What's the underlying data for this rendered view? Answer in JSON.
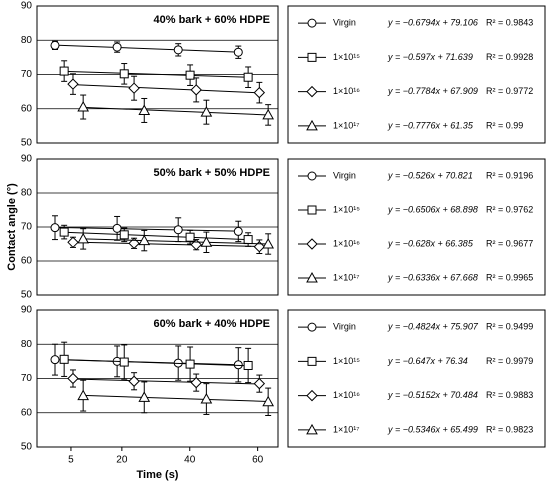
{
  "chart_data": [
    {
      "type": "scatter",
      "title": "40% bark + 60% HDPE",
      "xlim": [
        -5,
        66
      ],
      "ylim": [
        50,
        90
      ],
      "yticks": [
        50,
        60,
        70,
        80,
        90
      ],
      "grid": true,
      "series": [
        {
          "name": "Virgin",
          "marker": "circle",
          "color": "#000000",
          "equation": "y = −0.6794x + 79.106",
          "r2": "R² = 0.9843",
          "x": [
            0.3,
            18.6,
            36.6,
            54.3
          ],
          "values": [
            78.5,
            78,
            77.2,
            76.5
          ],
          "errors": [
            1.2,
            1.5,
            1.8,
            1.8
          ]
        },
        {
          "name": "1×10¹⁵",
          "marker": "square",
          "color": "#000000",
          "equation": "y = −0.597x + 71.639",
          "r2": "R² = 0.9928",
          "x": [
            3,
            20.7,
            40.1,
            57.2
          ],
          "values": [
            71,
            70.2,
            69.8,
            69.2
          ],
          "errors": [
            3,
            3,
            3,
            3
          ]
        },
        {
          "name": "1×10¹⁶",
          "marker": "diamond",
          "color": "#000000",
          "equation": "y = −0.7784x + 67.909",
          "r2": "R² = 0.9772",
          "x": [
            5.6,
            23.6,
            41.9,
            60.5
          ],
          "values": [
            67.2,
            66,
            65.5,
            64.7
          ],
          "errors": [
            3,
            3.5,
            3.5,
            3
          ]
        },
        {
          "name": "1×10¹⁷",
          "marker": "triangle",
          "color": "#000000",
          "equation": "y = −0.7776x + 61.35",
          "r2": "R² = 0.99",
          "x": [
            8.6,
            26.6,
            44.9,
            63.1
          ],
          "values": [
            60.5,
            59.5,
            59,
            58.2
          ],
          "errors": [
            3.5,
            3.5,
            3.5,
            3
          ]
        }
      ]
    },
    {
      "type": "scatter",
      "title": "50% bark + 50% HDPE",
      "ylabel": "Contact angle (°)",
      "xlim": [
        -5,
        66
      ],
      "ylim": [
        50,
        90
      ],
      "yticks": [
        50,
        60,
        70,
        80,
        90
      ],
      "grid": true,
      "series": [
        {
          "name": "Virgin",
          "marker": "circle",
          "color": "#000000",
          "equation": "y = −0.526x + 70.821",
          "r2": "R² = 0.9196",
          "x": [
            0.3,
            18.6,
            36.6,
            54.3
          ],
          "values": [
            69.8,
            69.6,
            69.2,
            68.7
          ],
          "errors": [
            3.5,
            3.5,
            3.5,
            3
          ]
        },
        {
          "name": "1×10¹⁵",
          "marker": "square",
          "color": "#000000",
          "equation": "y = −0.6506x + 68.898",
          "r2": "R² = 0.9762",
          "x": [
            3,
            20.7,
            40.1,
            57.2
          ],
          "values": [
            68.5,
            67.7,
            67,
            66.3
          ],
          "errors": [
            2,
            2,
            2,
            2
          ]
        },
        {
          "name": "1×10¹⁶",
          "marker": "diamond",
          "color": "#000000",
          "equation": "y = −0.628x + 66.385",
          "r2": "R² = 0.9677",
          "x": [
            5.6,
            23.6,
            41.9,
            60.5
          ],
          "values": [
            65.5,
            65.2,
            64.8,
            64.2
          ],
          "errors": [
            1.5,
            1.5,
            1.5,
            2
          ]
        },
        {
          "name": "1×10¹⁷",
          "marker": "triangle",
          "color": "#000000",
          "equation": "y = −0.6336x + 67.668",
          "r2": "R² = 0.9965",
          "x": [
            8.6,
            26.6,
            44.9,
            63.1
          ],
          "values": [
            66.5,
            66,
            65.5,
            65
          ],
          "errors": [
            3,
            3,
            3,
            3
          ]
        }
      ]
    },
    {
      "type": "scatter",
      "title": "60% bark + 40% HDPE",
      "xlabel": "Time (s)",
      "xlim": [
        -5,
        66
      ],
      "ylim": [
        50,
        90
      ],
      "xticks": [
        5,
        20,
        40,
        60
      ],
      "yticks": [
        50,
        60,
        70,
        80,
        90
      ],
      "grid": true,
      "series": [
        {
          "name": "Virgin",
          "marker": "circle",
          "color": "#000000",
          "equation": "y = −0.4824x + 75.907",
          "r2": "R² = 0.9499",
          "x": [
            0.3,
            18.6,
            36.6,
            54.3
          ],
          "values": [
            75.5,
            75,
            74.5,
            74
          ],
          "errors": [
            4.5,
            4.5,
            5,
            5
          ]
        },
        {
          "name": "1×10¹⁵",
          "marker": "square",
          "color": "#000000",
          "equation": "y = −0.647x + 76.34",
          "r2": "R² = 0.9979",
          "x": [
            3,
            20.7,
            40.1,
            57.2
          ],
          "values": [
            75.6,
            74.8,
            74.2,
            73.8
          ],
          "errors": [
            5,
            5,
            5,
            5
          ]
        },
        {
          "name": "1×10¹⁶",
          "marker": "diamond",
          "color": "#000000",
          "equation": "y = −0.5152x + 70.484",
          "r2": "R² = 0.9883",
          "x": [
            5.6,
            23.6,
            41.9,
            60.5
          ],
          "values": [
            70,
            69.2,
            68.8,
            68.5
          ],
          "errors": [
            2.5,
            2.5,
            2.5,
            2.5
          ]
        },
        {
          "name": "1×10¹⁷",
          "marker": "triangle",
          "color": "#000000",
          "equation": "y = −0.5346x + 65.499",
          "r2": "R² = 0.9823",
          "x": [
            8.6,
            26.6,
            44.9,
            63.1
          ],
          "values": [
            65,
            64.5,
            64,
            63.2
          ],
          "errors": [
            4.5,
            4.5,
            4.5,
            4
          ]
        }
      ]
    }
  ]
}
